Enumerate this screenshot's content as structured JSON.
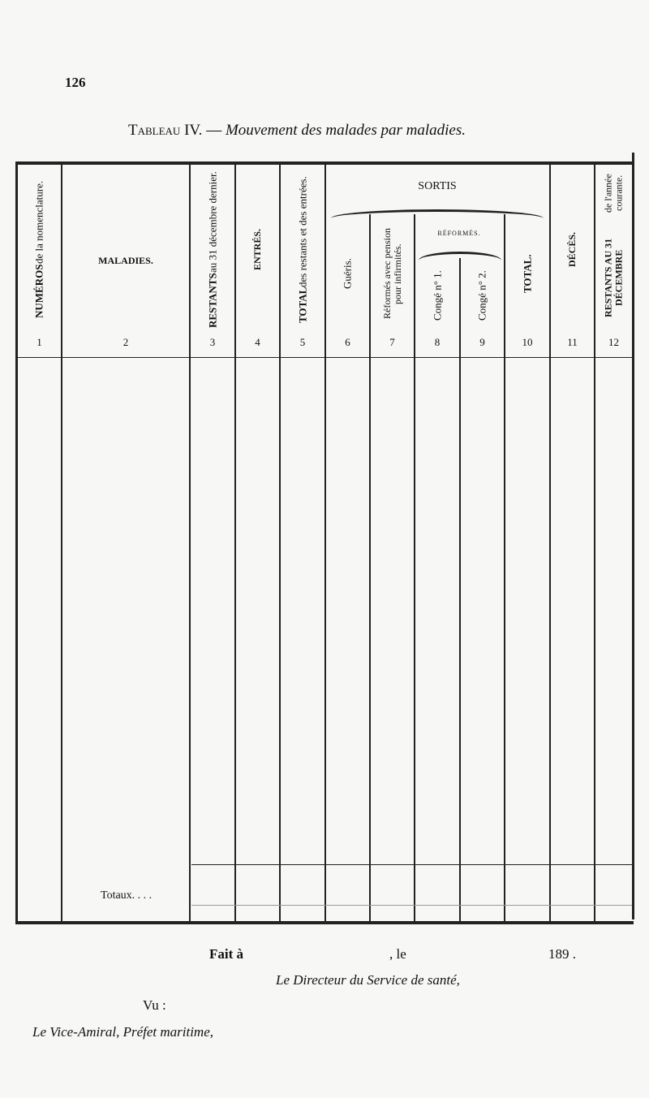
{
  "page_number": "126",
  "title": {
    "label": "Tableau IV.",
    "dash": "—",
    "subtitle": "Mouvement des malades par maladies."
  },
  "table": {
    "columns": [
      {
        "num": "1",
        "label": "NUMÉROS",
        "sub": "de la nomenclature."
      },
      {
        "num": "2",
        "label": "MALADIES."
      },
      {
        "num": "3",
        "label": "RESTANTS",
        "sub": "au 31 décembre dernier."
      },
      {
        "num": "4",
        "label": "ENTRÉS."
      },
      {
        "num": "5",
        "label": "TOTAL",
        "sub": "des restants et des entrées."
      },
      {
        "num": "6",
        "label": "Guéris."
      },
      {
        "num": "7",
        "label": "Réformés avec pension pour infirmités."
      },
      {
        "num": "8",
        "label": "Congé n° 1."
      },
      {
        "num": "9",
        "label": "Congé n° 2."
      },
      {
        "num": "10",
        "label": "TOTAL."
      },
      {
        "num": "11",
        "label": "DÉCÈS."
      },
      {
        "num": "12",
        "label": "RESTANTS AU 31 DÉCEMBRE",
        "sub": "de l'année courante."
      }
    ],
    "group_sortis": "SORTIS",
    "group_reformes": "RÉFORMÉS.",
    "totals_label": "Totaux. . . ."
  },
  "footer": {
    "fait": "Fait à",
    "le": ", le",
    "year": "189 .",
    "directeur": "Le Directeur du Service de santé,",
    "vu": "Vu :",
    "prefet": "Le Vice-Amiral, Préfet maritime,"
  }
}
